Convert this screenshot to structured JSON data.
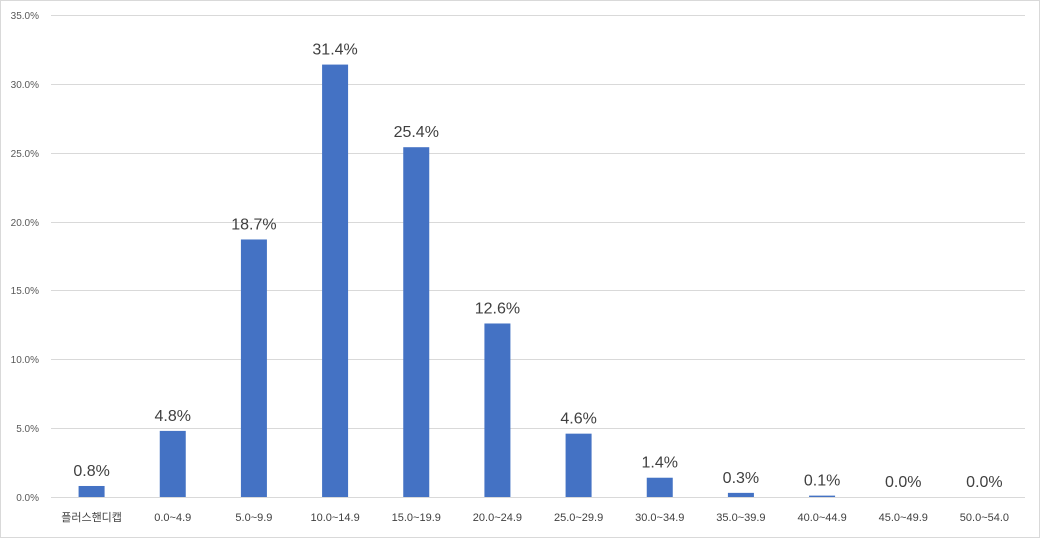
{
  "chart_data": {
    "type": "bar",
    "categories": [
      "플러스핸디캡",
      "0.0~4.9",
      "5.0~9.9",
      "10.0~14.9",
      "15.0~19.9",
      "20.0~24.9",
      "25.0~29.9",
      "30.0~34.9",
      "35.0~39.9",
      "40.0~44.9",
      "45.0~49.9",
      "50.0~54.0"
    ],
    "values": [
      0.8,
      4.8,
      18.7,
      31.4,
      25.4,
      12.6,
      4.6,
      1.4,
      0.3,
      0.1,
      0.0,
      0.0
    ],
    "data_labels": [
      "0.8%",
      "4.8%",
      "18.7%",
      "31.4%",
      "25.4%",
      "12.6%",
      "4.6%",
      "1.4%",
      "0.3%",
      "0.1%",
      "0.0%",
      "0.0%"
    ],
    "yticks": [
      0,
      5,
      10,
      15,
      20,
      25,
      30,
      35
    ],
    "ytick_labels": [
      "0.0%",
      "5.0%",
      "10.0%",
      "15.0%",
      "20.0%",
      "25.0%",
      "30.0%",
      "35.0%"
    ],
    "ylim": [
      0,
      35
    ],
    "grid": true,
    "colors": {
      "bar": "#4472C4",
      "grid": "#d9d9d9",
      "text": "#404040"
    }
  }
}
